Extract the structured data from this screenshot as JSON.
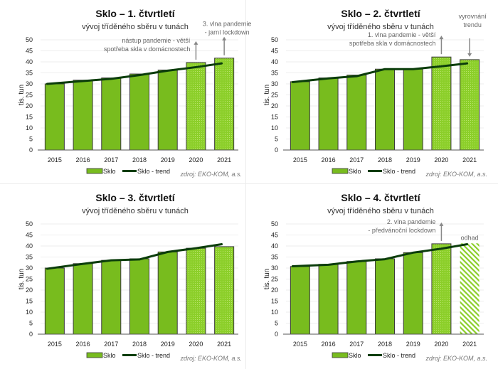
{
  "colors": {
    "bar_fill": "#78bc1e",
    "bar_stroke": "#3a3a3a",
    "dotted_fill": "#8ccf2a",
    "dot_color": "#b8e46a",
    "hatch_color": "#8ccf2a",
    "trend": "#0b3d0b",
    "annotation": "#666666",
    "arrow": "#888888",
    "gridline": "#eeeeee"
  },
  "chart_data": [
    {
      "type": "bar",
      "title": "Sklo – 1. čtvrtletí",
      "subtitle": "vývoj tříděného sběru v tunách",
      "xlabel": "",
      "ylabel": "tis. tun",
      "ylim": [
        0,
        50
      ],
      "yticks": [
        0,
        5,
        10,
        15,
        20,
        25,
        30,
        35,
        40,
        45,
        50
      ],
      "grid": true,
      "categories": [
        "2015",
        "2016",
        "2017",
        "2018",
        "2019",
        "2020",
        "2021"
      ],
      "series": [
        {
          "name": "Sklo",
          "kind": "bar",
          "values": [
            30.0,
            31.7,
            32.7,
            34.5,
            36.3,
            39.7,
            41.7
          ],
          "styles": [
            "solid",
            "solid",
            "solid",
            "solid",
            "solid",
            "dotted",
            "dotted"
          ]
        },
        {
          "name": "Sklo - trend",
          "kind": "line",
          "values": [
            30.0,
            31.3,
            32.3,
            34.0,
            36.0,
            37.6,
            39.3
          ]
        }
      ],
      "annotations": [
        {
          "lines": [
            "nástup pandemie - větší",
            "spotřeba skla v domácnostech"
          ],
          "target": "2020",
          "arrow": "up"
        },
        {
          "lines": [
            "3. vlna pandemie",
            "- jarní lockdown"
          ],
          "target": "2021",
          "arrow": "up"
        }
      ],
      "legend": {
        "position": "bottom",
        "items": [
          "Sklo",
          "Sklo - trend"
        ]
      },
      "source": "zdroj: EKO-KOM, a.s."
    },
    {
      "type": "bar",
      "title": "Sklo – 2. čtvrtletí",
      "subtitle": "vývoj tříděného sběru v tunách",
      "xlabel": "",
      "ylabel": "tis. tun",
      "ylim": [
        0,
        50
      ],
      "yticks": [
        0,
        5,
        10,
        15,
        20,
        25,
        30,
        35,
        40,
        45,
        50
      ],
      "grid": true,
      "categories": [
        "2015",
        "2016",
        "2017",
        "2018",
        "2019",
        "2020",
        "2021"
      ],
      "series": [
        {
          "name": "Sklo",
          "kind": "bar",
          "values": [
            31.0,
            32.7,
            34.0,
            36.7,
            36.7,
            42.2,
            41.0
          ],
          "styles": [
            "solid",
            "solid",
            "solid",
            "solid",
            "solid",
            "dotted",
            "dotted"
          ]
        },
        {
          "name": "Sklo - trend",
          "kind": "line",
          "values": [
            30.8,
            32.5,
            33.5,
            36.7,
            36.7,
            38.0,
            39.3
          ]
        }
      ],
      "annotations": [
        {
          "lines": [
            "1. vlna pandemie - větší",
            "spotřeba skla v domácnostech"
          ],
          "target": "2020",
          "arrow": "up"
        },
        {
          "lines": [
            "vyrovnání",
            "trendu"
          ],
          "target": "2021",
          "arrow": "down"
        }
      ],
      "legend": {
        "position": "bottom",
        "items": [
          "Sklo",
          "Sklo - trend"
        ]
      },
      "source": "zdroj: EKO-KOM, a.s."
    },
    {
      "type": "bar",
      "title": "Sklo – 3. čtvrtletí",
      "subtitle": "vývoj tříděného sběru v tunách",
      "xlabel": "",
      "ylabel": "tis. tun",
      "ylim": [
        0,
        50
      ],
      "yticks": [
        0,
        5,
        10,
        15,
        20,
        25,
        30,
        35,
        40,
        45,
        50
      ],
      "grid": true,
      "categories": [
        "2015",
        "2016",
        "2017",
        "2018",
        "2019",
        "2020",
        "2021"
      ],
      "series": [
        {
          "name": "Sklo",
          "kind": "bar",
          "values": [
            30.0,
            32.0,
            33.5,
            34.2,
            37.3,
            39.0,
            39.7
          ],
          "styles": [
            "solid",
            "solid",
            "solid",
            "solid",
            "solid",
            "dotted",
            "dotted"
          ]
        },
        {
          "name": "Sklo - trend",
          "kind": "line",
          "values": [
            29.7,
            31.9,
            33.5,
            33.9,
            37.3,
            39.0,
            40.8
          ]
        }
      ],
      "annotations": [],
      "legend": {
        "position": "bottom",
        "items": [
          "Sklo",
          "Sklo - trend"
        ]
      },
      "source": "zdroj: EKO-KOM, a.s."
    },
    {
      "type": "bar",
      "title": "Sklo – 4. čtvrtletí",
      "subtitle": "vývoj tříděného sběru v tunách",
      "xlabel": "",
      "ylabel": "tis. tun",
      "ylim": [
        0,
        50
      ],
      "yticks": [
        0,
        5,
        10,
        15,
        20,
        25,
        30,
        35,
        40,
        45,
        50
      ],
      "grid": true,
      "categories": [
        "2015",
        "2016",
        "2017",
        "2018",
        "2019",
        "2020",
        "2021"
      ],
      "series": [
        {
          "name": "Sklo",
          "kind": "bar",
          "values": [
            30.7,
            31.7,
            33.0,
            34.2,
            37.0,
            41.0,
            41.2
          ],
          "styles": [
            "solid",
            "solid",
            "solid",
            "solid",
            "solid",
            "dotted",
            "hatched"
          ]
        },
        {
          "name": "Sklo - trend",
          "kind": "line",
          "values": [
            30.8,
            31.5,
            33.0,
            34.0,
            37.0,
            38.8,
            40.8
          ]
        }
      ],
      "annotations": [
        {
          "lines": [
            "2. vlna pandemie",
            "- předvánoční lockdown"
          ],
          "target": "2020",
          "arrow": "up"
        },
        {
          "lines": [
            "odhad"
          ],
          "target": "2021",
          "arrow": "none"
        }
      ],
      "legend": {
        "position": "bottom",
        "items": [
          "Sklo",
          "Sklo - trend"
        ]
      },
      "source": "zdroj: EKO-KOM, a.s."
    }
  ]
}
